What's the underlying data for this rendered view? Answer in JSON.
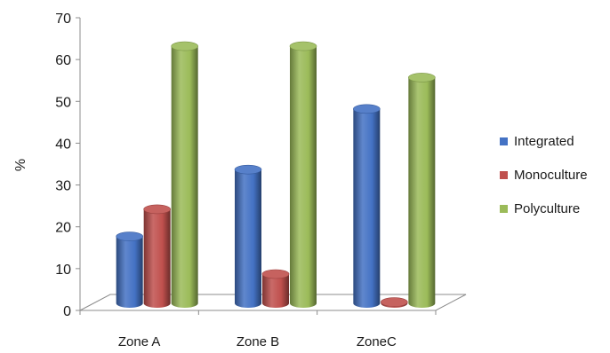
{
  "chart_data": {
    "type": "bar",
    "title": "",
    "xlabel": "",
    "ylabel": "%",
    "ylim": [
      0,
      70
    ],
    "yticks": [
      0,
      10,
      20,
      30,
      40,
      50,
      60,
      70
    ],
    "categories": [
      "Zone A",
      "Zone B",
      "ZoneC"
    ],
    "series": [
      {
        "name": "Integrated",
        "color": "#4472C4",
        "values": [
          16,
          32,
          46.5
        ]
      },
      {
        "name": "Monoculture",
        "color": "#C0504D",
        "values": [
          22.5,
          7,
          0.3
        ]
      },
      {
        "name": "Polyculture",
        "color": "#9BBB59",
        "values": [
          61.5,
          61.5,
          54
        ]
      }
    ],
    "grid": false,
    "legend_position": "right",
    "style": "3d-cylinder"
  }
}
